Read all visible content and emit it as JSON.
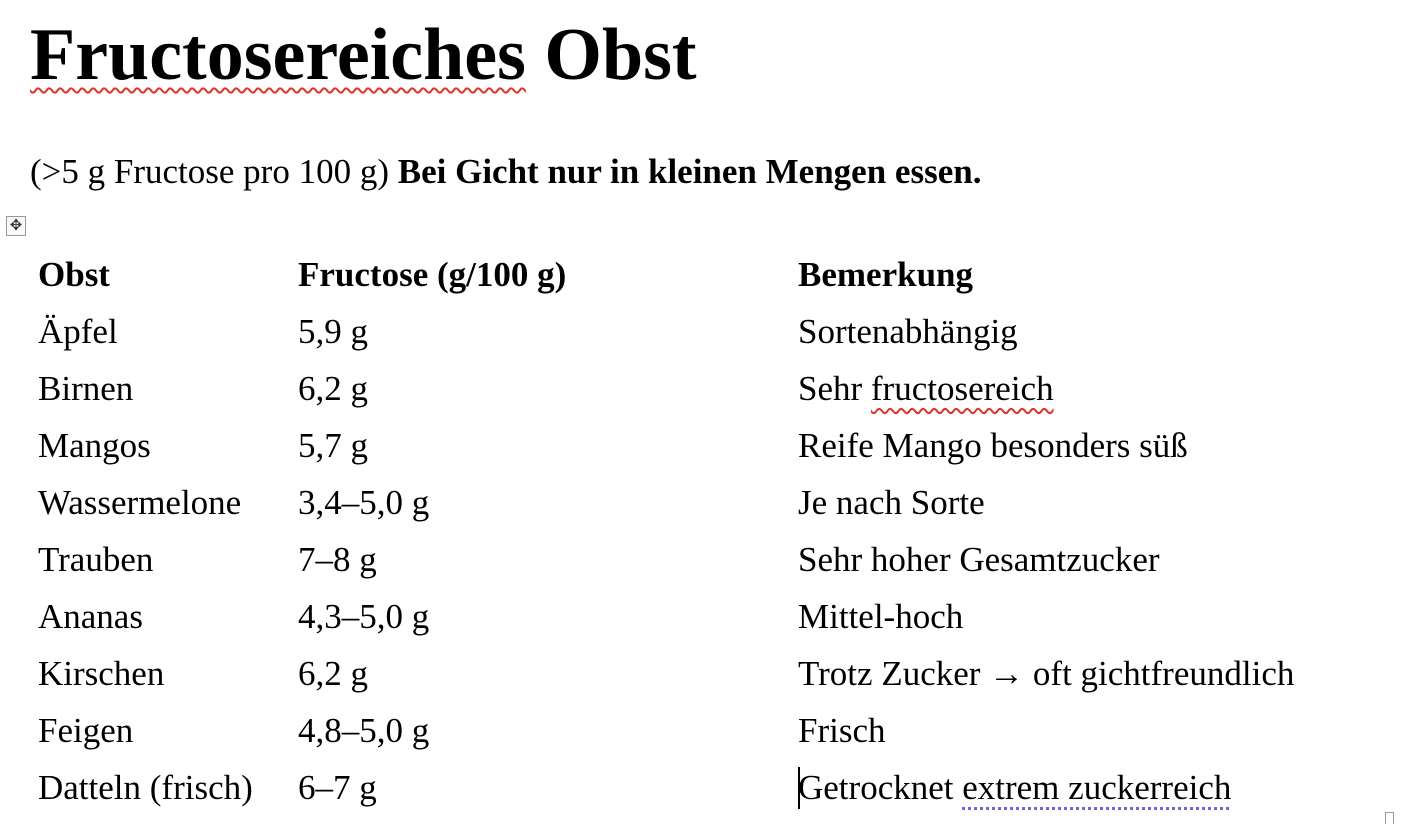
{
  "document": {
    "title_word1": "Fructosereiches",
    "title_word2": " Obst",
    "subtitle_plain": "(>5 g Fructose pro 100 g) ",
    "subtitle_bold": "Bei Gicht nur in kleinen Mengen essen.",
    "table_move_icon": "move-arrows-icon",
    "table": {
      "headers": [
        "Obst",
        "Fructose (g/100 g)",
        "Bemerkung"
      ],
      "rows": [
        [
          "Äpfel",
          "5,9 g",
          "Sortenabhängig"
        ],
        [
          "Birnen",
          "6,2 g",
          "Sehr fructosereich"
        ],
        [
          "Mangos",
          "5,7 g",
          "Reife Mango besonders süß"
        ],
        [
          "Wassermelone",
          "3,4–5,0 g",
          "Je nach Sorte"
        ],
        [
          "Trauben",
          "7–8 g",
          "Sehr hoher Gesamtzucker"
        ],
        [
          "Ananas",
          "4,3–5,0 g",
          "Mittel-hoch"
        ],
        [
          "Kirschen",
          "6,2 g",
          "Trotz Zucker → oft gichtfreundlich"
        ],
        [
          "Feigen",
          "4,8–5,0 g",
          "Frisch"
        ],
        [
          "Datteln (frisch)",
          "6–7 g",
          "Getrocknet extrem zuckerreich"
        ]
      ],
      "row2_note_parts": [
        "Sehr ",
        "fructosereich"
      ],
      "row9_note_parts": [
        "Getrocknet ",
        "extrem zuckerreich"
      ]
    },
    "colors": {
      "spelling_underline": "#e0332e",
      "grammar_underline": "#7b5fd6"
    }
  }
}
